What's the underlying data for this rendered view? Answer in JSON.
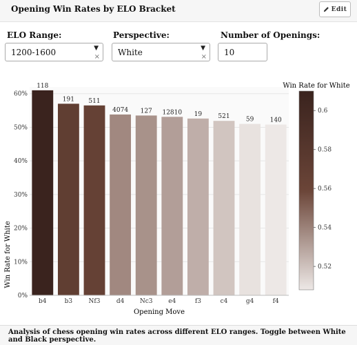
{
  "header": {
    "title": "Opening Win Rates by ELO Bracket",
    "edit_label": "Edit",
    "edit_icon": "pencil-icon"
  },
  "controls": {
    "elo_range": {
      "label": "ELO Range:",
      "value": "1200-1600"
    },
    "perspective": {
      "label": "Perspective:",
      "value": "White"
    },
    "num_openings": {
      "label": "Number of Openings:",
      "value": "10"
    }
  },
  "chart_data": {
    "type": "bar",
    "categories": [
      "b4",
      "b3",
      "Nf3",
      "d4",
      "Nc3",
      "e4",
      "f3",
      "c4",
      "g4",
      "f4"
    ],
    "values": [
      0.61,
      0.57,
      0.565,
      0.538,
      0.535,
      0.531,
      0.526,
      0.519,
      0.51,
      0.508
    ],
    "data_labels": [
      "118",
      "191",
      "511",
      "4074",
      "127",
      "12810",
      "19",
      "521",
      "59",
      "140"
    ],
    "xlabel": "Opening Move",
    "ylabel": "Win Rate for White",
    "ylim": [
      0,
      0.62
    ],
    "yticks": [
      0,
      0.1,
      0.2,
      0.3,
      0.4,
      0.5,
      0.6
    ],
    "ytick_labels": [
      "0%",
      "10%",
      "20%",
      "30%",
      "40%",
      "50%",
      "60%"
    ],
    "grid": true,
    "colorbar": {
      "title": "Win Rate for White",
      "range": [
        0.508,
        0.61
      ],
      "ticks": [
        0.52,
        0.54,
        0.56,
        0.58,
        0.6
      ],
      "tick_labels": [
        "0.52",
        "0.54",
        "0.56",
        "0.58",
        "0.6"
      ],
      "colors": [
        "#ede8e6",
        "#6b4538",
        "#3a231e"
      ]
    }
  },
  "footer": {
    "description": "Analysis of chess opening win rates across different ELO ranges. Toggle between White and Black perspective."
  }
}
